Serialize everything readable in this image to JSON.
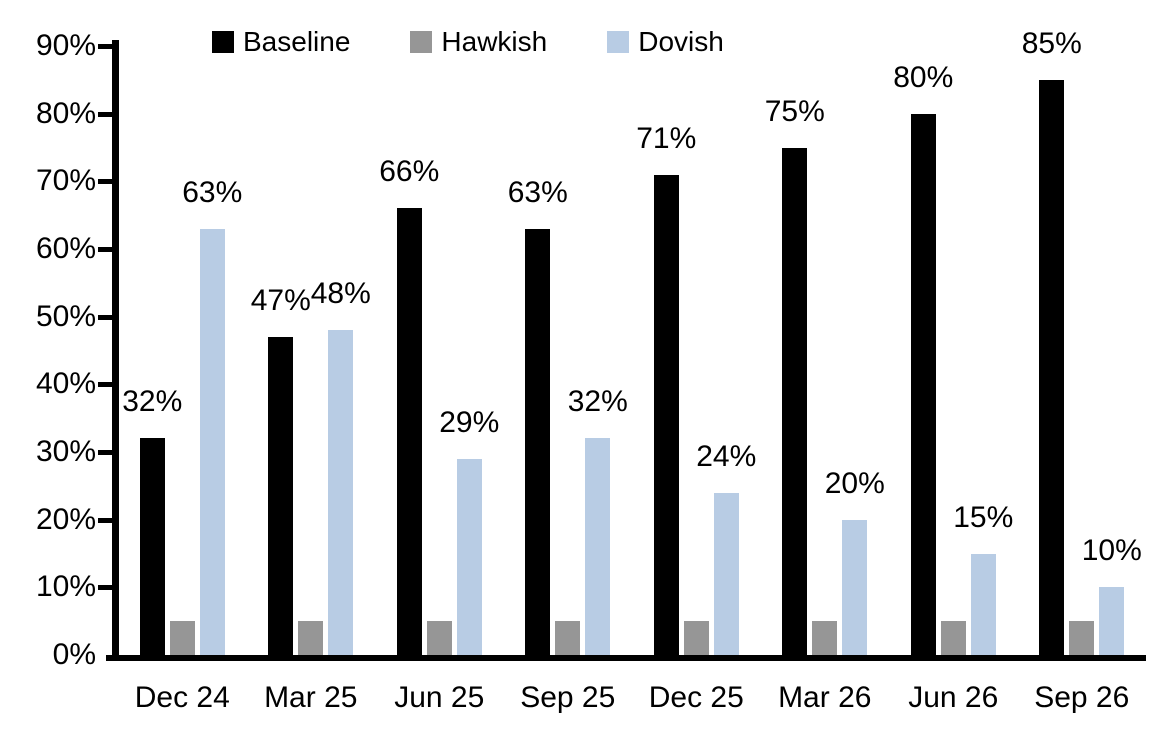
{
  "chart_data": {
    "type": "bar",
    "title": "",
    "xlabel": "",
    "ylabel": "",
    "categories": [
      "Dec 24",
      "Mar 25",
      "Jun 25",
      "Sep 25",
      "Dec 25",
      "Mar 26",
      "Jun 26",
      "Sep 26"
    ],
    "series": [
      {
        "name": "Baseline",
        "color": "#000000",
        "values": [
          32,
          47,
          66,
          63,
          71,
          75,
          80,
          85
        ],
        "data_labels": [
          "32%",
          "47%",
          "66%",
          "63%",
          "71%",
          "75%",
          "80%",
          "85%"
        ]
      },
      {
        "name": "Hawkish",
        "color": "#969696",
        "values": [
          5,
          5,
          5,
          5,
          5,
          5,
          5,
          5
        ],
        "data_labels": null
      },
      {
        "name": "Dovish",
        "color": "#b8cce4",
        "values": [
          63,
          48,
          29,
          32,
          24,
          20,
          15,
          10
        ],
        "data_labels": [
          "63%",
          "48%",
          "29%",
          "32%",
          "24%",
          "20%",
          "15%",
          "10%"
        ]
      }
    ],
    "ylim": [
      0,
      90
    ],
    "ytick_step": 10,
    "ytick_labels": [
      "0%",
      "10%",
      "20%",
      "30%",
      "40%",
      "50%",
      "60%",
      "70%",
      "80%",
      "90%"
    ],
    "legend_position": "top",
    "grid": false,
    "axis_color": "#000000",
    "text_color": "#000000"
  }
}
